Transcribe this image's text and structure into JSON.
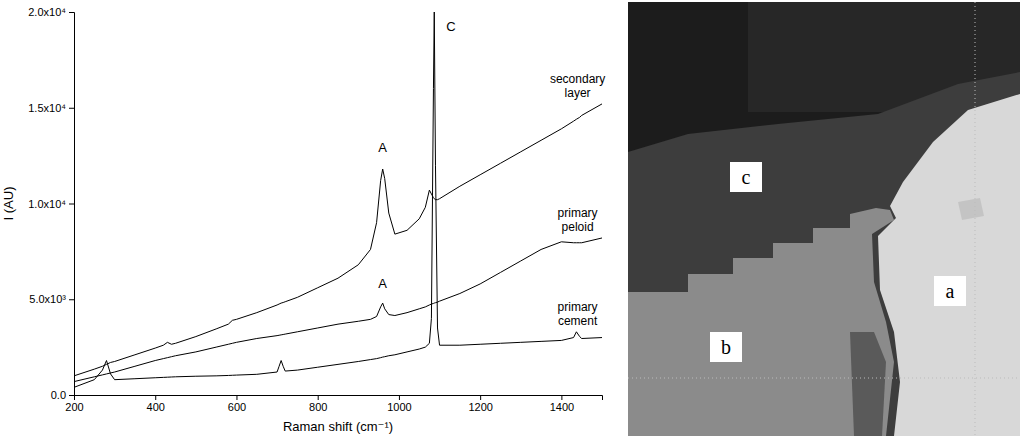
{
  "chart_data": {
    "type": "line",
    "x_label": "Raman shift (cm⁻¹)",
    "y_label": "I (AU)",
    "xlim": [
      200,
      1500
    ],
    "xticks": [
      200,
      400,
      600,
      800,
      1000,
      1200,
      1400
    ],
    "ylim": [
      0,
      20000
    ],
    "yticks": [
      {
        "value": 0,
        "label": "0.0"
      },
      {
        "value": 5000,
        "label": "5.0x10³"
      },
      {
        "value": 10000,
        "label": "1.0x10⁴"
      },
      {
        "value": 15000,
        "label": "1.5x10⁴"
      },
      {
        "value": 20000,
        "label": "2.0x10⁴"
      }
    ],
    "grid": false,
    "x": [
      200,
      250,
      270,
      280,
      290,
      300,
      350,
      400,
      420,
      430,
      440,
      450,
      500,
      550,
      580,
      590,
      600,
      650,
      700,
      705,
      710,
      715,
      720,
      750,
      800,
      850,
      900,
      930,
      945,
      955,
      960,
      965,
      975,
      990,
      1020,
      1050,
      1065,
      1075,
      1080,
      1085,
      1087,
      1090,
      1095,
      1100,
      1150,
      1200,
      1250,
      1300,
      1350,
      1400,
      1430,
      1437,
      1445,
      1450,
      1500
    ],
    "series": [
      {
        "name": "secondary layer",
        "color": "#000000",
        "values": [
          1000,
          1350,
          1500,
          1600,
          1700,
          1750,
          2100,
          2450,
          2600,
          2750,
          2650,
          2700,
          3050,
          3450,
          3700,
          3900,
          3950,
          4300,
          4700,
          4750,
          4800,
          4830,
          4870,
          5100,
          5600,
          6100,
          6800,
          7600,
          9000,
          11200,
          11800,
          11300,
          9500,
          8400,
          8600,
          9200,
          9800,
          10700,
          10500,
          10300,
          10250,
          10200,
          10200,
          10250,
          10900,
          11500,
          12100,
          12700,
          13300,
          13900,
          14300,
          14400,
          14500,
          14600,
          15200
        ]
      },
      {
        "name": "primary peloid",
        "color": "#000000",
        "values": [
          700,
          950,
          1050,
          1100,
          1150,
          1200,
          1500,
          1800,
          1900,
          1950,
          2000,
          2050,
          2250,
          2500,
          2650,
          2700,
          2750,
          2950,
          3100,
          3120,
          3140,
          3160,
          3180,
          3300,
          3500,
          3700,
          3850,
          3950,
          4100,
          4600,
          4800,
          4500,
          4200,
          4150,
          4300,
          4500,
          4600,
          4700,
          4750,
          4780,
          4800,
          4820,
          4850,
          4900,
          5300,
          5800,
          6400,
          7000,
          7600,
          8000,
          7950,
          7950,
          7950,
          7950,
          8200
        ]
      },
      {
        "name": "primary cement",
        "color": "#000000",
        "values": [
          400,
          800,
          1300,
          1800,
          1100,
          800,
          850,
          900,
          920,
          930,
          940,
          950,
          980,
          1000,
          1020,
          1030,
          1040,
          1080,
          1200,
          1500,
          1800,
          1500,
          1250,
          1300,
          1450,
          1600,
          1750,
          1850,
          1900,
          1950,
          1980,
          2000,
          2050,
          2100,
          2250,
          2400,
          2500,
          2700,
          4000,
          16000,
          20000,
          12000,
          3500,
          2600,
          2600,
          2650,
          2700,
          2750,
          2800,
          2850,
          3000,
          3300,
          3050,
          2950,
          3000
        ]
      }
    ],
    "annotations": [
      {
        "text": "A",
        "x": 960,
        "y": 12700
      },
      {
        "text": "A",
        "x": 960,
        "y": 5600
      },
      {
        "text": "C",
        "x": 1128,
        "y": 19000
      }
    ]
  },
  "image": {
    "labels": [
      "c",
      "b",
      "a"
    ]
  }
}
